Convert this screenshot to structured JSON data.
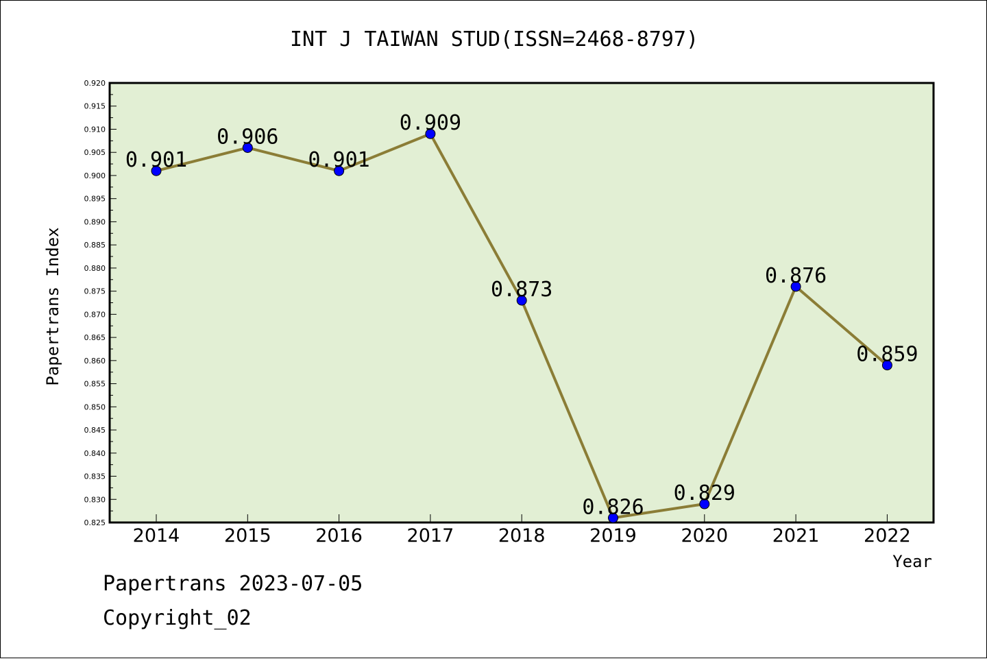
{
  "chart_data": {
    "type": "line",
    "title": "INT J TAIWAN STUD(ISSN=2468-8797)",
    "xlabel": "Year",
    "ylabel": "Papertrans Index",
    "x": [
      2014,
      2015,
      2016,
      2017,
      2018,
      2019,
      2020,
      2021,
      2022
    ],
    "categories": [
      "2014",
      "2015",
      "2016",
      "2017",
      "2018",
      "2019",
      "2020",
      "2021",
      "2022"
    ],
    "series": [
      {
        "values": [
          0.901,
          0.906,
          0.901,
          0.909,
          0.873,
          0.826,
          0.829,
          0.876,
          0.859
        ],
        "labels": [
          "0.901",
          "0.906",
          "0.901",
          "0.909",
          "0.873",
          "0.826",
          "0.829",
          "0.876",
          "0.859"
        ]
      }
    ],
    "ylim": [
      0.825,
      0.92
    ],
    "yticks": [
      "0.825",
      "0.830",
      "0.835",
      "0.840",
      "0.845",
      "0.850",
      "0.855",
      "0.860",
      "0.865",
      "0.870",
      "0.875",
      "0.880",
      "0.885",
      "0.890",
      "0.895",
      "0.900",
      "0.905",
      "0.910",
      "0.915",
      "0.920"
    ],
    "grid": false,
    "colors": {
      "plot_background": "#e2efd4",
      "line": "#8b7d36",
      "marker": "#0000ff"
    }
  },
  "footer": {
    "line1": "Papertrans 2023-07-05",
    "line2": "Copyright_02"
  }
}
